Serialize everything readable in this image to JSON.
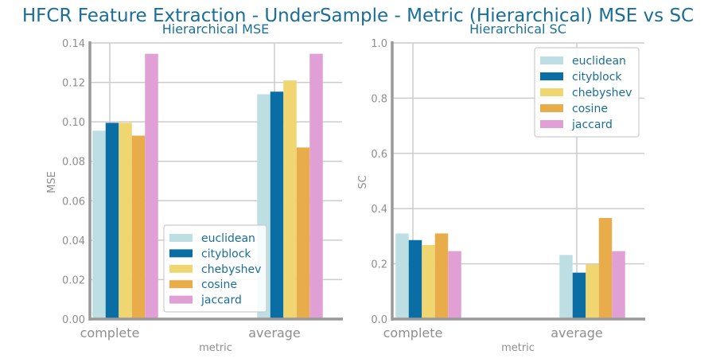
{
  "suptitle": "HFCR Feature Extraction - UnderSample - Metric (Hierarchical) MSE vs SC",
  "legend_order": [
    "euclidean",
    "cityblock",
    "chebyshev",
    "cosine",
    "jaccard"
  ],
  "colors": {
    "euclidean": "#bddfe3",
    "cityblock": "#0a6ea5",
    "chebyshev": "#f0d670",
    "cosine": "#e8ac4a",
    "jaccard": "#e0a0d6",
    "axis": "#999999",
    "grid": "#cccccc",
    "text_blue": "#1a6e97",
    "text_gray": "#8e8e8e"
  },
  "chart_data": [
    {
      "type": "bar",
      "title": "Hierarchical MSE",
      "xlabel": "metric",
      "ylabel": "MSE",
      "categories": [
        "complete",
        "average"
      ],
      "ylim": [
        0,
        0.14
      ],
      "yticks": [
        "0.00",
        "0.02",
        "0.04",
        "0.06",
        "0.08",
        "0.10",
        "0.12",
        "0.14"
      ],
      "legend_position": "lower-right",
      "grid": true,
      "series": [
        {
          "name": "euclidean",
          "values": [
            0.0955,
            0.114
          ]
        },
        {
          "name": "cityblock",
          "values": [
            0.0995,
            0.1153
          ]
        },
        {
          "name": "chebyshev",
          "values": [
            0.0995,
            0.121
          ]
        },
        {
          "name": "cosine",
          "values": [
            0.093,
            0.087
          ]
        },
        {
          "name": "jaccard",
          "values": [
            0.1345,
            0.1345
          ]
        }
      ]
    },
    {
      "type": "bar",
      "title": "Hierarchical SC",
      "xlabel": "metric",
      "ylabel": "SC",
      "categories": [
        "complete",
        "average"
      ],
      "ylim": [
        0,
        1.0
      ],
      "yticks": [
        "0.0",
        "0.2",
        "0.4",
        "0.6",
        "0.8",
        "1.0"
      ],
      "legend_position": "upper-right",
      "grid": true,
      "series": [
        {
          "name": "euclidean",
          "values": [
            0.31,
            0.232
          ]
        },
        {
          "name": "cityblock",
          "values": [
            0.286,
            0.168
          ]
        },
        {
          "name": "chebyshev",
          "values": [
            0.268,
            0.198
          ]
        },
        {
          "name": "cosine",
          "values": [
            0.31,
            0.366
          ]
        },
        {
          "name": "jaccard",
          "values": [
            0.246,
            0.246
          ]
        }
      ]
    }
  ]
}
